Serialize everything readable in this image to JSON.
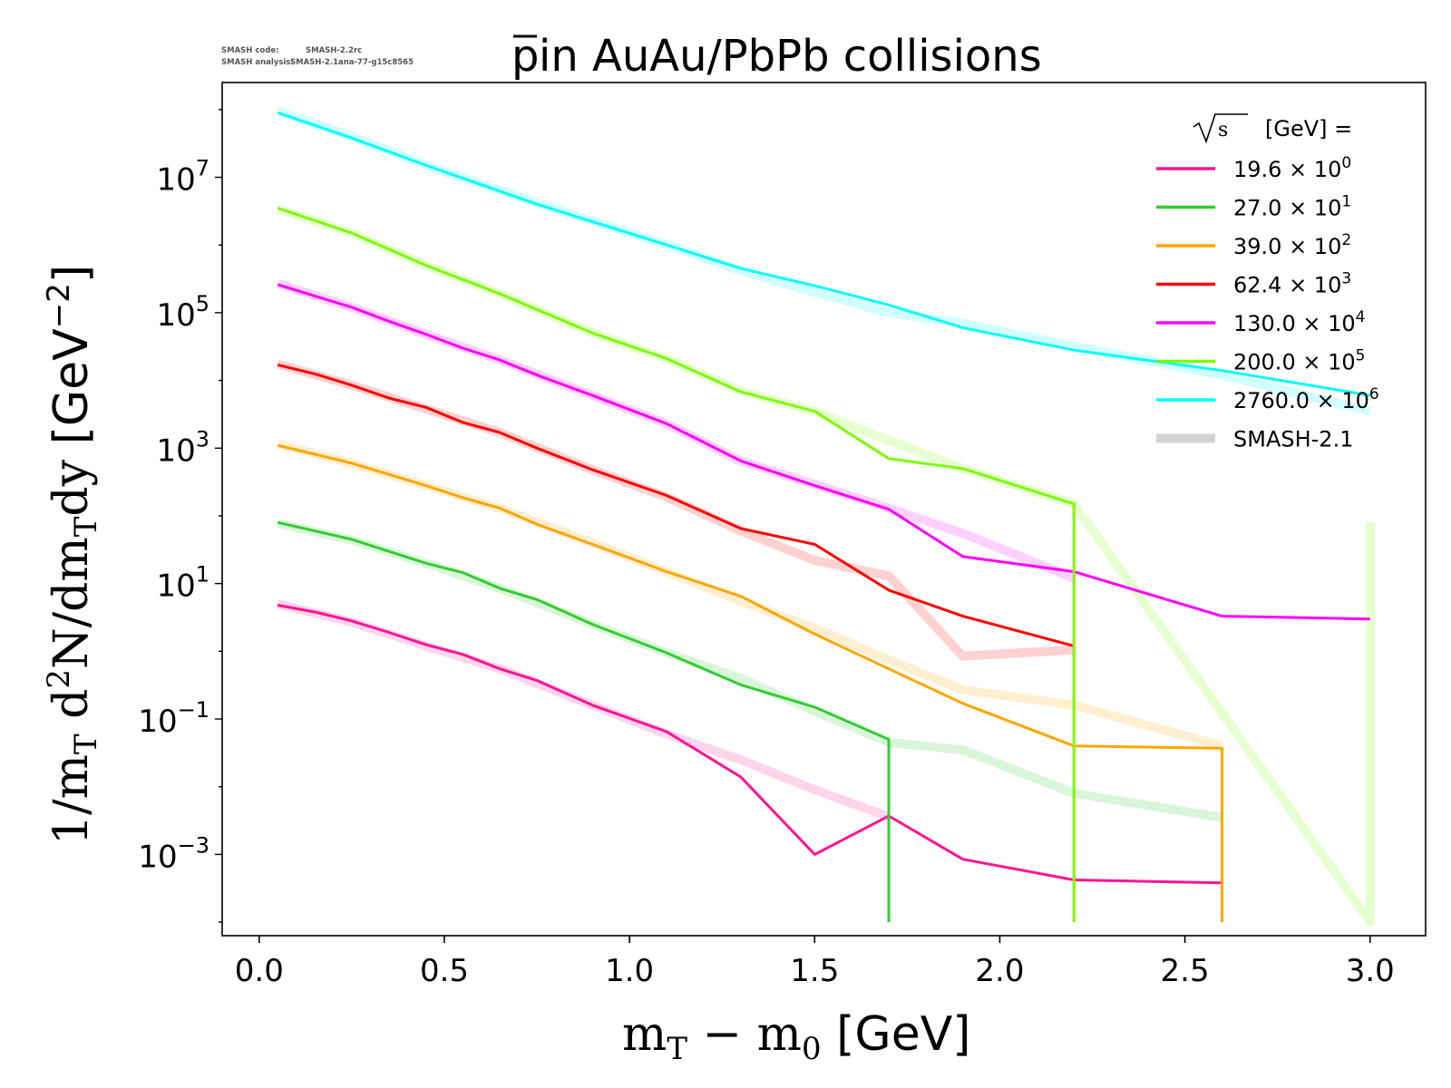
{
  "smash_info": {
    "code_label": "SMASH code:",
    "code_value": "SMASH-2.2rc",
    "analysis_label": "SMASH analysis:",
    "analysis_value": "SMASH-2.1ana-77-g15c8565"
  },
  "chart_data": {
    "type": "line",
    "title": "p̄ in AuAu/PbPb collisions",
    "title_parts": {
      "particle": "p",
      "rest": " in AuAu/PbPb collisions"
    },
    "xlabel": "m_T − m_0 [GeV]",
    "xlabel_parts": {
      "m1": "m",
      "sub1": "T",
      "minus": " − ",
      "m2": "m",
      "sub2": "0",
      "unit": " [GeV]"
    },
    "ylabel": "1/m_T d²N/dm_T dy [GeV⁻²]",
    "ylabel_parts": {
      "a": "1/m",
      "sub_a": "T",
      "b": " d",
      "sup_b": "2",
      "c": "N/dm",
      "sub_c": "T",
      "d": "dy",
      "unit": " [GeV",
      "unit_sup": "−2",
      "unit_close": "]"
    },
    "xlim": [
      -0.1,
      3.15
    ],
    "ylim_log10": [
      -4.2,
      8.4
    ],
    "y_scale": "log",
    "grid": false,
    "legend_placement": "top-right",
    "x_ticks": [
      {
        "value": 0.0,
        "label": "0.0"
      },
      {
        "value": 0.5,
        "label": "0.5"
      },
      {
        "value": 1.0,
        "label": "1.0"
      },
      {
        "value": 1.5,
        "label": "1.5"
      },
      {
        "value": 2.0,
        "label": "2.0"
      },
      {
        "value": 2.5,
        "label": "2.5"
      },
      {
        "value": 3.0,
        "label": "3.0"
      }
    ],
    "y_ticks": [
      {
        "exp": 7,
        "base": "10",
        "sup": "7"
      },
      {
        "exp": 5,
        "base": "10",
        "sup": "5"
      },
      {
        "exp": 3,
        "base": "10",
        "sup": "3"
      },
      {
        "exp": 1,
        "base": "10",
        "sup": "1"
      },
      {
        "exp": -1,
        "base": "10",
        "sup": "−1"
      },
      {
        "exp": -3,
        "base": "10",
        "sup": "−3"
      }
    ],
    "legend": {
      "title_symbol": "√s",
      "title_text": "[GeV] =",
      "smash_label": "SMASH-2.1",
      "smash_color": "#d3d3d3"
    },
    "series": [
      {
        "name": "19.6 × 10⁰",
        "label_value": "19.6",
        "label_base": "10",
        "label_exp": "0",
        "color": "#ff1493",
        "x": [
          0.05,
          0.15,
          0.25,
          0.35,
          0.45,
          0.55,
          0.65,
          0.75,
          0.9,
          1.1,
          1.3,
          1.5,
          1.7,
          1.9,
          2.2,
          2.6
        ],
        "y": [
          4.8,
          3.8,
          2.8,
          1.9,
          1.25,
          0.9,
          0.55,
          0.37,
          0.16,
          0.065,
          0.014,
          0.001,
          0.0037,
          0.00085,
          0.00042,
          0.00038
        ],
        "ref_x": [
          0.05,
          0.25,
          0.45,
          0.65,
          0.9,
          1.1,
          1.3,
          1.5,
          1.7
        ],
        "ref_y": [
          5.0,
          2.7,
          1.2,
          0.55,
          0.16,
          0.06,
          0.025,
          0.009,
          0.0036
        ]
      },
      {
        "name": "27.0 × 10¹",
        "label_value": "27.0",
        "label_base": "10",
        "label_exp": "1",
        "color": "#32cd32",
        "x": [
          0.05,
          0.25,
          0.45,
          0.55,
          0.65,
          0.75,
          0.9,
          1.1,
          1.3,
          1.5,
          1.7,
          1.7
        ],
        "y": [
          80,
          45,
          20,
          14.5,
          8.5,
          5.8,
          2.5,
          0.95,
          0.32,
          0.15,
          0.05,
          0.0001
        ],
        "ref_x": [
          0.05,
          0.25,
          0.45,
          0.65,
          0.9,
          1.1,
          1.3,
          1.5,
          1.7,
          1.9,
          2.2,
          2.6
        ],
        "ref_y": [
          78,
          44,
          20,
          8.5,
          2.5,
          0.95,
          0.4,
          0.13,
          0.045,
          0.035,
          0.008,
          0.0035
        ]
      },
      {
        "name": "39.0 × 10²",
        "label_value": "39.0",
        "label_base": "10",
        "label_exp": "2",
        "color": "#ffa500",
        "x": [
          0.05,
          0.25,
          0.45,
          0.55,
          0.65,
          0.75,
          0.9,
          1.1,
          1.3,
          1.5,
          1.7,
          1.9,
          2.2,
          2.6,
          2.6
        ],
        "y": [
          1100,
          600,
          280,
          185,
          130,
          75,
          38,
          15,
          6.5,
          1.8,
          0.55,
          0.17,
          0.04,
          0.037,
          0.0001
        ],
        "ref_x": [
          0.05,
          0.25,
          0.45,
          0.65,
          0.9,
          1.1,
          1.3,
          1.5,
          1.7,
          1.9,
          2.2,
          2.6
        ],
        "ref_y": [
          1150,
          600,
          280,
          130,
          40,
          15,
          5.5,
          2.2,
          0.75,
          0.27,
          0.16,
          0.04
        ]
      },
      {
        "name": "62.4 × 10³",
        "label_value": "62.4",
        "label_base": "10",
        "label_exp": "3",
        "color": "#ff0000",
        "x": [
          0.05,
          0.15,
          0.25,
          0.35,
          0.45,
          0.55,
          0.65,
          0.75,
          0.9,
          1.1,
          1.3,
          1.5,
          1.7,
          1.9,
          2.2
        ],
        "y": [
          17000,
          12500,
          8500,
          5500,
          4000,
          2400,
          1700,
          1000,
          480,
          200,
          65,
          38,
          8,
          3.3,
          1.2
        ],
        "ref_x": [
          0.05,
          0.25,
          0.45,
          0.65,
          0.9,
          1.1,
          1.3,
          1.5,
          1.7,
          1.9,
          2.2
        ],
        "ref_y": [
          17500,
          8500,
          3800,
          1700,
          480,
          190,
          60,
          22,
          13,
          0.85,
          1.05
        ]
      },
      {
        "name": "130.0 × 10⁴",
        "label_value": "130.0",
        "label_base": "10",
        "label_exp": "4",
        "color": "#ff00ff",
        "x": [
          0.05,
          0.25,
          0.35,
          0.45,
          0.55,
          0.65,
          0.75,
          0.9,
          1.1,
          1.3,
          1.5,
          1.7,
          1.9,
          2.2,
          2.6,
          3.0
        ],
        "y": [
          260000,
          120000,
          75000,
          48000,
          30000,
          20000,
          12000,
          6000,
          2300,
          650,
          280,
          125,
          25,
          15,
          3.3,
          3.0
        ],
        "ref_x": [
          0.05,
          0.25,
          0.45,
          0.65,
          0.9,
          1.1,
          1.3,
          1.5,
          1.7,
          1.9,
          2.2
        ],
        "ref_y": [
          270000,
          120000,
          48000,
          20000,
          6000,
          2300,
          650,
          290,
          130,
          55,
          12
        ]
      },
      {
        "name": "200.0 × 10⁵",
        "label_value": "200.0",
        "label_base": "10",
        "label_exp": "5",
        "color": "#7cfc00",
        "x": [
          0.05,
          0.25,
          0.45,
          0.65,
          0.9,
          1.1,
          1.3,
          1.5,
          1.7,
          1.9,
          2.2,
          2.2
        ],
        "y": [
          3500000,
          1500000,
          500000,
          190000,
          50000,
          21000,
          6800,
          3500,
          700,
          500,
          150,
          0.0001
        ],
        "ref_x": [
          0.05,
          0.25,
          0.45,
          0.65,
          0.9,
          1.1,
          1.3,
          1.5,
          1.7,
          1.9,
          2.2,
          3.0,
          3.0
        ],
        "ref_y": [
          3400000,
          1500000,
          500000,
          190000,
          50000,
          21000,
          7000,
          3500,
          1300,
          500,
          150,
          0.0001,
          80
        ]
      },
      {
        "name": "2760.0 × 10⁶",
        "label_value": "2760.0",
        "label_base": "10",
        "label_exp": "6",
        "color": "#00ffff",
        "x": [
          0.05,
          0.25,
          0.45,
          0.75,
          1.1,
          1.3,
          1.5,
          1.7,
          1.9,
          2.2,
          2.6,
          3.0
        ],
        "y": [
          90000000,
          38000000,
          15000000,
          4000000,
          1000000,
          450000,
          250000,
          130000,
          60000,
          28000,
          14000,
          6000
        ],
        "ref_x": [
          0.05,
          0.25,
          0.45,
          0.75,
          1.1,
          1.3,
          1.5,
          1.7,
          1.9,
          2.2,
          2.6,
          3.0
        ],
        "ref_y": [
          95000000,
          40000000,
          15000000,
          4200000,
          1000000,
          420000,
          200000,
          100000,
          70000,
          32000,
          12000,
          3500
        ]
      }
    ]
  }
}
